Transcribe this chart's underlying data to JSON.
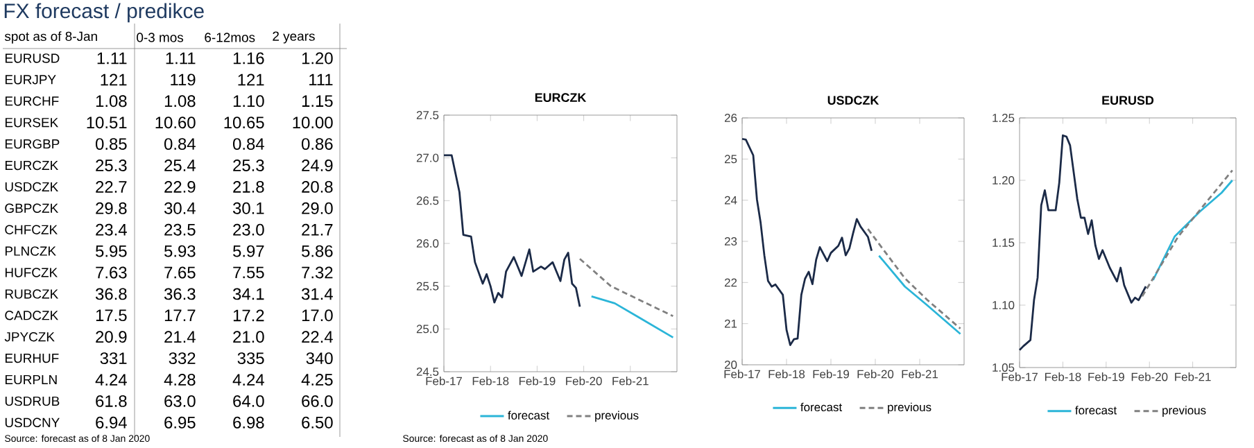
{
  "chart_data": [
    {
      "type": "other",
      "title": "FX forecast / predikce",
      "categories": [
        "EURUSD",
        "EURJPY",
        "EURCHF",
        "EURSEK",
        "EURGBP",
        "EURCZK",
        "USDCZK",
        "GBPCZK",
        "CHFCZK",
        "PLNCZK",
        "HUFCZK",
        "RUBCZK",
        "CADCZK",
        "JPYCZK",
        "EURHUF",
        "EURPLN",
        "USDRUB",
        "USDCNY"
      ],
      "series": [
        {
          "name": "spot as of 8-Jan",
          "values": [
            1.11,
            121,
            1.08,
            10.51,
            0.85,
            25.3,
            22.7,
            29.8,
            23.4,
            5.95,
            7.63,
            36.8,
            17.5,
            20.9,
            331,
            4.24,
            61.8,
            6.94
          ],
          "value_labels": [
            "1.11",
            "121",
            "1.08",
            "10.51",
            "0.85",
            "25.3",
            "22.7",
            "29.8",
            "23.4",
            "5.95",
            "7.63",
            "36.8",
            "17.5",
            "20.9",
            "331",
            "4.24",
            "61.8",
            "6.94"
          ]
        },
        {
          "name": "0-3 mos",
          "values": [
            1.11,
            119,
            1.08,
            10.6,
            0.84,
            25.4,
            22.9,
            30.4,
            23.5,
            5.93,
            7.65,
            36.3,
            17.7,
            21.4,
            332,
            4.28,
            63.0,
            6.95
          ],
          "value_labels": [
            "1.11",
            "119",
            "1.08",
            "10.60",
            "0.84",
            "25.4",
            "22.9",
            "30.4",
            "23.5",
            "5.93",
            "7.65",
            "36.3",
            "17.7",
            "21.4",
            "332",
            "4.28",
            "63.0",
            "6.95"
          ]
        },
        {
          "name": "6-12mos",
          "values": [
            1.16,
            121,
            1.1,
            10.65,
            0.84,
            25.3,
            21.8,
            30.1,
            23.0,
            5.97,
            7.55,
            34.1,
            17.2,
            21.0,
            335,
            4.24,
            64.0,
            6.98
          ],
          "value_labels": [
            "1.16",
            "121",
            "1.10",
            "10.65",
            "0.84",
            "25.3",
            "21.8",
            "30.1",
            "23.0",
            "5.97",
            "7.55",
            "34.1",
            "17.2",
            "21.0",
            "335",
            "4.24",
            "64.0",
            "6.98"
          ]
        },
        {
          "name": "2 years",
          "values": [
            1.2,
            111,
            1.15,
            10.0,
            0.86,
            24.9,
            20.8,
            29.0,
            21.7,
            5.86,
            7.32,
            31.4,
            17.0,
            22.4,
            340,
            4.25,
            66.0,
            6.5
          ],
          "value_labels": [
            "1.20",
            "111",
            "1.15",
            "10.00",
            "0.86",
            "24.9",
            "20.8",
            "29.0",
            "21.7",
            "5.86",
            "7.32",
            "31.4",
            "17.0",
            "22.4",
            "340",
            "4.25",
            "66.0",
            "6.50"
          ]
        }
      ],
      "annotations": [
        "Source: forecast as of 8 Jan 2020"
      ]
    },
    {
      "type": "line",
      "title": "EURCZK",
      "xlim": [
        "2017-02",
        "2022-02"
      ],
      "xticks": [
        {
          "value": "2017-02",
          "label": "Feb-17"
        },
        {
          "value": "2018-02",
          "label": "Feb-18"
        },
        {
          "value": "2019-02",
          "label": "Feb-19"
        },
        {
          "value": "2020-02",
          "label": "Feb-20"
        },
        {
          "value": "2021-02",
          "label": "Feb-21"
        }
      ],
      "ylim": [
        24.5,
        27.5
      ],
      "yticks": [
        24.5,
        {
          "value": 25,
          "label": "25.0"
        },
        25.5,
        {
          "value": 26,
          "label": "26.0"
        },
        26.5,
        {
          "value": 27,
          "label": "27.0"
        },
        27.5
      ],
      "legend": "bottom",
      "marker": "none",
      "series": [
        {
          "color": "#1b2a47",
          "x": [
            "2017-02",
            "2017-04",
            "2017-06",
            "2017-07",
            "2017-09",
            "2017-10",
            "2017-12",
            "2018-01",
            "2018-02",
            "2018-03",
            "2018-04",
            "2018-05",
            "2018-06",
            "2018-08",
            "2018-09",
            "2018-10",
            "2018-12",
            "2019-01",
            "2019-03",
            "2019-04",
            "2019-06",
            "2019-07",
            "2019-08",
            "2019-09",
            "2019-10",
            "2019-11",
            "2019-12",
            "2020-01"
          ],
          "values": [
            27.03,
            27.03,
            26.6,
            26.1,
            26.08,
            25.78,
            25.53,
            25.64,
            25.5,
            25.31,
            25.42,
            25.37,
            25.67,
            25.84,
            25.73,
            25.62,
            25.93,
            25.67,
            25.73,
            25.7,
            25.78,
            25.67,
            25.56,
            25.81,
            25.89,
            25.53,
            25.48,
            25.26
          ]
        },
        {
          "name": "forecast",
          "color": "#2bb5d8",
          "x": [
            "2020-04",
            "2020-10",
            "2021-04",
            "2022-01"
          ],
          "values": [
            25.38,
            25.3,
            25.14,
            24.9
          ]
        },
        {
          "name": "previous",
          "color": "#808080",
          "line_style": "dashed",
          "x": [
            "2020-01",
            "2020-09",
            "2022-01"
          ],
          "values": [
            25.82,
            25.5,
            25.15
          ]
        }
      ],
      "annotations": [
        "Source: forecast as of 8 Jan 2020"
      ]
    },
    {
      "type": "line",
      "title": "USDCZK",
      "xlim": [
        "2017-02",
        "2022-02"
      ],
      "xticks": [
        {
          "value": "2017-02",
          "label": "Feb-17"
        },
        {
          "value": "2018-02",
          "label": "Feb-18"
        },
        {
          "value": "2019-02",
          "label": "Feb-19"
        },
        {
          "value": "2020-02",
          "label": "Feb-20"
        },
        {
          "value": "2021-02",
          "label": "Feb-21"
        }
      ],
      "ylim": [
        20,
        26
      ],
      "yticks": [
        20,
        21,
        22,
        23,
        24,
        25,
        26
      ],
      "legend": "bottom",
      "marker": "none",
      "series": [
        {
          "color": "#1b2a47",
          "x": [
            "2017-02",
            "2017-03",
            "2017-05",
            "2017-06",
            "2017-07",
            "2017-08",
            "2017-09",
            "2017-10",
            "2017-11",
            "2018-01",
            "2018-02",
            "2018-03",
            "2018-04",
            "2018-05",
            "2018-06",
            "2018-07",
            "2018-08",
            "2018-09",
            "2018-10",
            "2018-11",
            "2019-01",
            "2019-02",
            "2019-04",
            "2019-05",
            "2019-06",
            "2019-07",
            "2019-08",
            "2019-09",
            "2019-10",
            "2019-12",
            "2020-01"
          ],
          "values": [
            25.49,
            25.47,
            25.09,
            24.02,
            23.45,
            22.66,
            22.04,
            21.9,
            21.95,
            21.7,
            20.85,
            20.48,
            20.62,
            20.64,
            21.7,
            22.09,
            22.26,
            21.96,
            22.55,
            22.86,
            22.52,
            22.72,
            22.89,
            23.09,
            22.66,
            22.83,
            23.2,
            23.54,
            23.36,
            23.11,
            22.77
          ]
        },
        {
          "name": "forecast",
          "color": "#2bb5d8",
          "x": [
            "2020-03",
            "2020-10",
            "2021-04",
            "2022-01"
          ],
          "values": [
            22.65,
            21.9,
            21.45,
            20.75
          ]
        },
        {
          "name": "previous",
          "color": "#808080",
          "line_style": "dashed",
          "x": [
            "2019-12",
            "2020-10",
            "2021-04",
            "2022-01"
          ],
          "values": [
            23.3,
            22.1,
            21.58,
            20.88
          ]
        }
      ]
    },
    {
      "type": "line",
      "title": "EURUSD",
      "xlim": [
        "2017-02",
        "2022-02"
      ],
      "xticks": [
        {
          "value": "2017-02",
          "label": "Feb-17"
        },
        {
          "value": "2018-02",
          "label": "Feb-18"
        },
        {
          "value": "2019-02",
          "label": "Feb-19"
        },
        {
          "value": "2020-02",
          "label": "Feb-20"
        },
        {
          "value": "2021-02",
          "label": "Feb-21"
        }
      ],
      "ylim": [
        1.05,
        1.25
      ],
      "yticks": [
        1.05,
        {
          "value": 1.1,
          "label": "1.10"
        },
        1.15,
        {
          "value": 1.2,
          "label": "1.20"
        },
        1.25
      ],
      "legend": "bottom",
      "marker": "none",
      "series": [
        {
          "color": "#1b2a47",
          "x": [
            "2017-02",
            "2017-03",
            "2017-05",
            "2017-06",
            "2017-07",
            "2017-08",
            "2017-09",
            "2017-10",
            "2017-12",
            "2018-01",
            "2018-02",
            "2018-03",
            "2018-04",
            "2018-06",
            "2018-07",
            "2018-08",
            "2018-09",
            "2018-10",
            "2018-11",
            "2018-12",
            "2019-01",
            "2019-03",
            "2019-05",
            "2019-06",
            "2019-07",
            "2019-09",
            "2019-10",
            "2019-11",
            "2020-01"
          ],
          "values": [
            1.064,
            1.067,
            1.072,
            1.104,
            1.122,
            1.18,
            1.192,
            1.176,
            1.176,
            1.198,
            1.236,
            1.235,
            1.228,
            1.185,
            1.17,
            1.17,
            1.157,
            1.168,
            1.148,
            1.137,
            1.144,
            1.13,
            1.119,
            1.13,
            1.116,
            1.102,
            1.106,
            1.104,
            1.115
          ]
        },
        {
          "name": "forecast",
          "color": "#2bb5d8",
          "x": [
            "2020-03",
            "2020-09",
            "2021-04",
            "2021-10",
            "2022-01"
          ],
          "values": [
            1.12,
            1.155,
            1.175,
            1.19,
            1.2
          ]
        },
        {
          "name": "previous",
          "color": "#808080",
          "line_style": "dashed",
          "x": [
            "2019-12",
            "2020-10",
            "2022-01"
          ],
          "values": [
            1.107,
            1.155,
            1.208
          ]
        }
      ]
    }
  ]
}
